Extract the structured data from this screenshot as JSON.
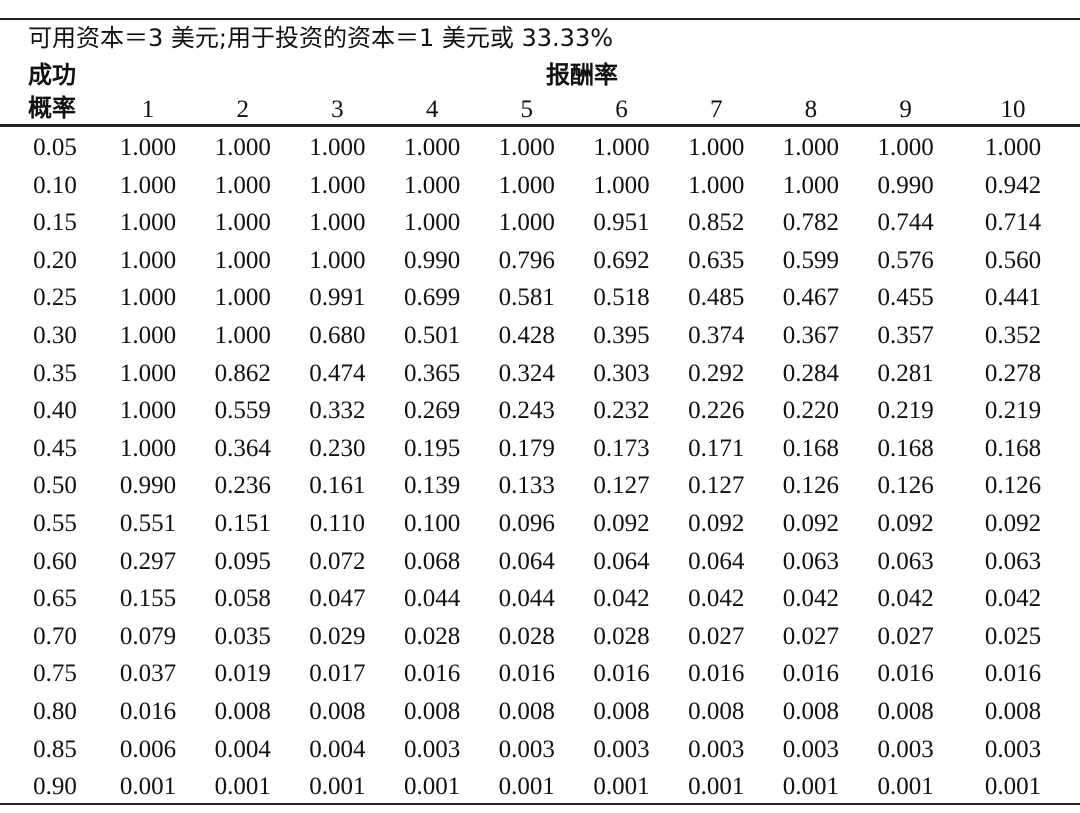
{
  "table": {
    "title": "可用资本＝3 美元;用于投资的资本＝1 美元或 33.33%",
    "row_header": [
      "成功",
      "概率"
    ],
    "column_group": "报酬率",
    "columns": [
      "1",
      "2",
      "3",
      "4",
      "5",
      "6",
      "7",
      "8",
      "9",
      "10"
    ],
    "rows": [
      [
        "0.05",
        "1.000",
        "1.000",
        "1.000",
        "1.000",
        "1.000",
        "1.000",
        "1.000",
        "1.000",
        "1.000",
        "1.000"
      ],
      [
        "0.10",
        "1.000",
        "1.000",
        "1.000",
        "1.000",
        "1.000",
        "1.000",
        "1.000",
        "1.000",
        "0.990",
        "0.942"
      ],
      [
        "0.15",
        "1.000",
        "1.000",
        "1.000",
        "1.000",
        "1.000",
        "0.951",
        "0.852",
        "0.782",
        "0.744",
        "0.714"
      ],
      [
        "0.20",
        "1.000",
        "1.000",
        "1.000",
        "0.990",
        "0.796",
        "0.692",
        "0.635",
        "0.599",
        "0.576",
        "0.560"
      ],
      [
        "0.25",
        "1.000",
        "1.000",
        "0.991",
        "0.699",
        "0.581",
        "0.518",
        "0.485",
        "0.467",
        "0.455",
        "0.441"
      ],
      [
        "0.30",
        "1.000",
        "1.000",
        "0.680",
        "0.501",
        "0.428",
        "0.395",
        "0.374",
        "0.367",
        "0.357",
        "0.352"
      ],
      [
        "0.35",
        "1.000",
        "0.862",
        "0.474",
        "0.365",
        "0.324",
        "0.303",
        "0.292",
        "0.284",
        "0.281",
        "0.278"
      ],
      [
        "0.40",
        "1.000",
        "0.559",
        "0.332",
        "0.269",
        "0.243",
        "0.232",
        "0.226",
        "0.220",
        "0.219",
        "0.219"
      ],
      [
        "0.45",
        "1.000",
        "0.364",
        "0.230",
        "0.195",
        "0.179",
        "0.173",
        "0.171",
        "0.168",
        "0.168",
        "0.168"
      ],
      [
        "0.50",
        "0.990",
        "0.236",
        "0.161",
        "0.139",
        "0.133",
        "0.127",
        "0.127",
        "0.126",
        "0.126",
        "0.126"
      ],
      [
        "0.55",
        "0.551",
        "0.151",
        "0.110",
        "0.100",
        "0.096",
        "0.092",
        "0.092",
        "0.092",
        "0.092",
        "0.092"
      ],
      [
        "0.60",
        "0.297",
        "0.095",
        "0.072",
        "0.068",
        "0.064",
        "0.064",
        "0.064",
        "0.063",
        "0.063",
        "0.063"
      ],
      [
        "0.65",
        "0.155",
        "0.058",
        "0.047",
        "0.044",
        "0.044",
        "0.042",
        "0.042",
        "0.042",
        "0.042",
        "0.042"
      ],
      [
        "0.70",
        "0.079",
        "0.035",
        "0.029",
        "0.028",
        "0.028",
        "0.028",
        "0.027",
        "0.027",
        "0.027",
        "0.025"
      ],
      [
        "0.75",
        "0.037",
        "0.019",
        "0.017",
        "0.016",
        "0.016",
        "0.016",
        "0.016",
        "0.016",
        "0.016",
        "0.016"
      ],
      [
        "0.80",
        "0.016",
        "0.008",
        "0.008",
        "0.008",
        "0.008",
        "0.008",
        "0.008",
        "0.008",
        "0.008",
        "0.008"
      ],
      [
        "0.85",
        "0.006",
        "0.004",
        "0.004",
        "0.003",
        "0.003",
        "0.003",
        "0.003",
        "0.003",
        "0.003",
        "0.003"
      ],
      [
        "0.90",
        "0.001",
        "0.001",
        "0.001",
        "0.001",
        "0.001",
        "0.001",
        "0.001",
        "0.001",
        "0.001",
        "0.001"
      ]
    ]
  }
}
